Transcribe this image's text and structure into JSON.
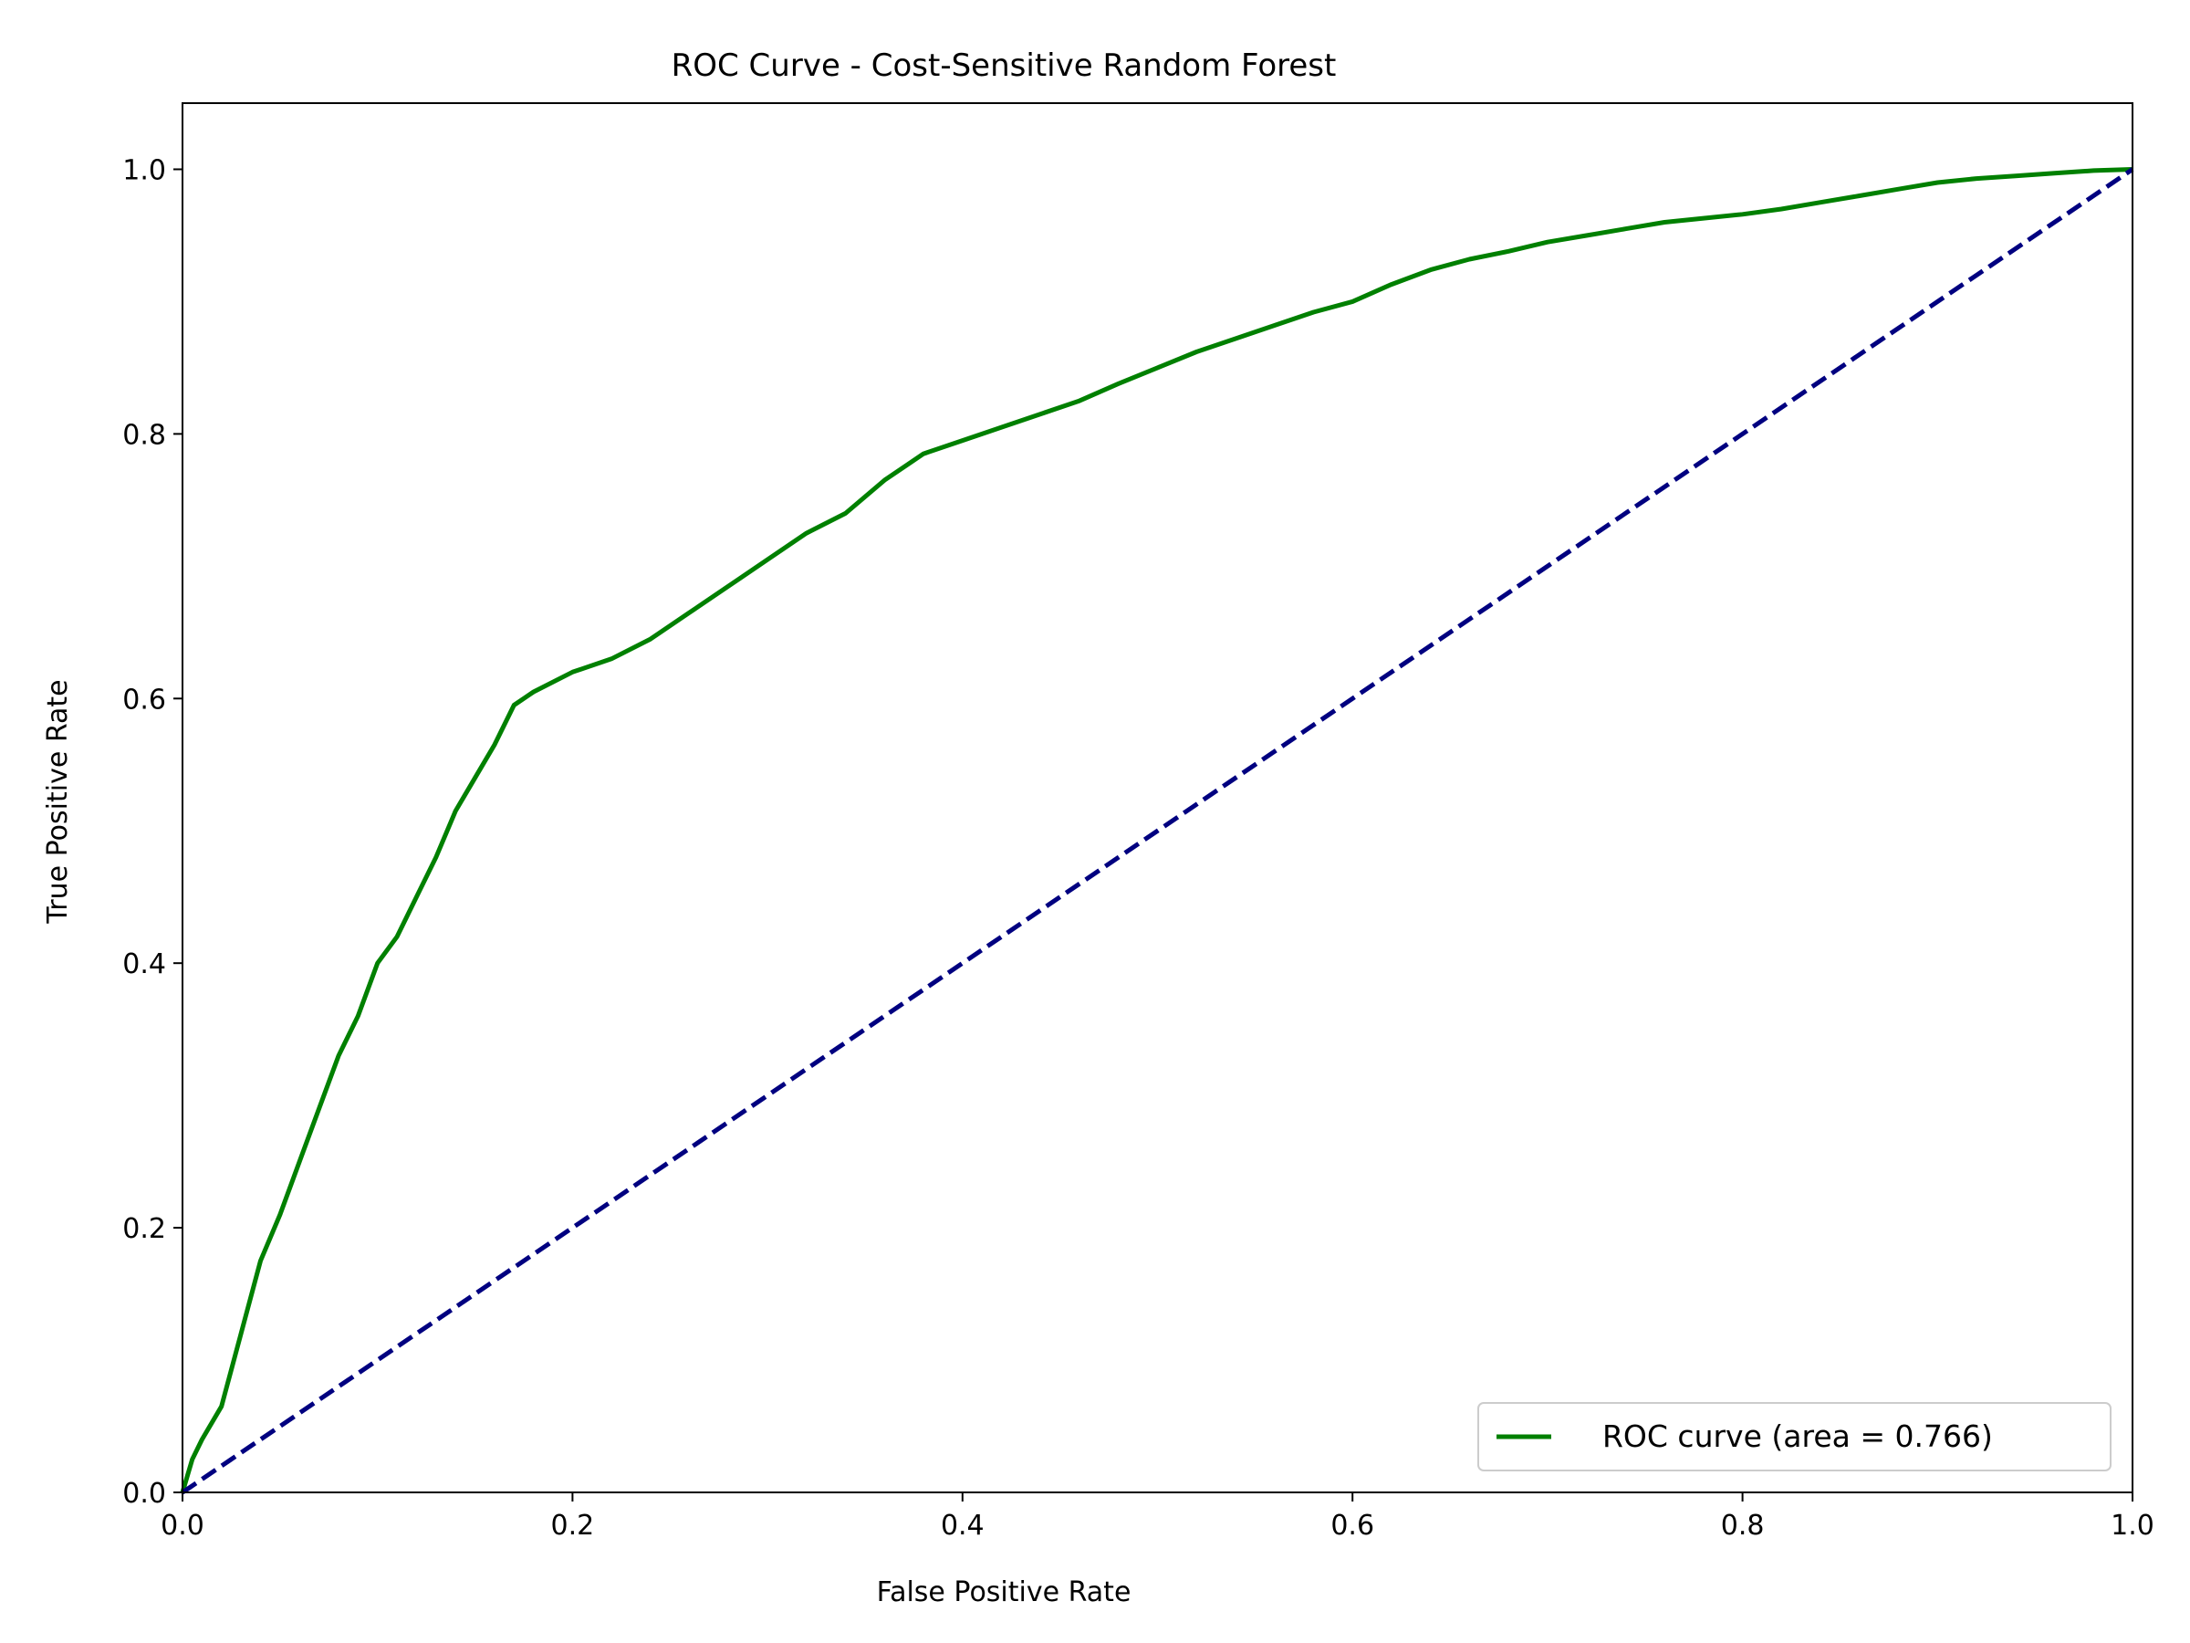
{
  "chart_data": {
    "type": "line",
    "title": "ROC Curve - Cost-Sensitive Random Forest",
    "xlabel": "False Positive Rate",
    "ylabel": "True Positive Rate",
    "xlim": [
      0.0,
      1.0
    ],
    "ylim": [
      0.0,
      1.05
    ],
    "xticks": [
      0.0,
      0.2,
      0.4,
      0.6,
      0.8,
      1.0
    ],
    "yticks": [
      0.0,
      0.2,
      0.4,
      0.6,
      0.8,
      1.0
    ],
    "xtick_labels": [
      "0.0",
      "0.2",
      "0.4",
      "0.6",
      "0.8",
      "1.0"
    ],
    "ytick_labels": [
      "0.0",
      "0.2",
      "0.4",
      "0.6",
      "0.8",
      "1.0"
    ],
    "grid": false,
    "legend_position": "lower-right",
    "series": [
      {
        "name": "ROC curve (area = 0.766)",
        "color": "#008000",
        "style": "solid",
        "x": [
          0.0,
          0.005,
          0.01,
          0.02,
          0.03,
          0.04,
          0.05,
          0.06,
          0.07,
          0.08,
          0.09,
          0.1,
          0.11,
          0.12,
          0.13,
          0.14,
          0.15,
          0.16,
          0.17,
          0.18,
          0.2,
          0.22,
          0.24,
          0.26,
          0.28,
          0.3,
          0.32,
          0.34,
          0.36,
          0.38,
          0.4,
          0.42,
          0.44,
          0.46,
          0.48,
          0.5,
          0.52,
          0.54,
          0.56,
          0.58,
          0.6,
          0.62,
          0.64,
          0.66,
          0.68,
          0.7,
          0.72,
          0.74,
          0.76,
          0.78,
          0.8,
          0.82,
          0.84,
          0.86,
          0.88,
          0.9,
          0.92,
          0.94,
          0.96,
          0.98,
          1.0
        ],
        "y": [
          0.0,
          0.025,
          0.04,
          0.065,
          0.12,
          0.175,
          0.21,
          0.25,
          0.29,
          0.33,
          0.36,
          0.4,
          0.42,
          0.45,
          0.48,
          0.515,
          0.54,
          0.565,
          0.595,
          0.605,
          0.62,
          0.63,
          0.645,
          0.665,
          0.685,
          0.705,
          0.725,
          0.74,
          0.765,
          0.785,
          0.795,
          0.805,
          0.815,
          0.825,
          0.838,
          0.85,
          0.862,
          0.872,
          0.882,
          0.892,
          0.9,
          0.913,
          0.924,
          0.932,
          0.938,
          0.945,
          0.95,
          0.955,
          0.96,
          0.963,
          0.966,
          0.97,
          0.975,
          0.98,
          0.985,
          0.99,
          0.993,
          0.995,
          0.997,
          0.999,
          1.0
        ]
      },
      {
        "name": "",
        "color": "#000080",
        "style": "dashed",
        "x": [
          0.0,
          1.0
        ],
        "y": [
          0.0,
          1.0
        ]
      }
    ]
  }
}
